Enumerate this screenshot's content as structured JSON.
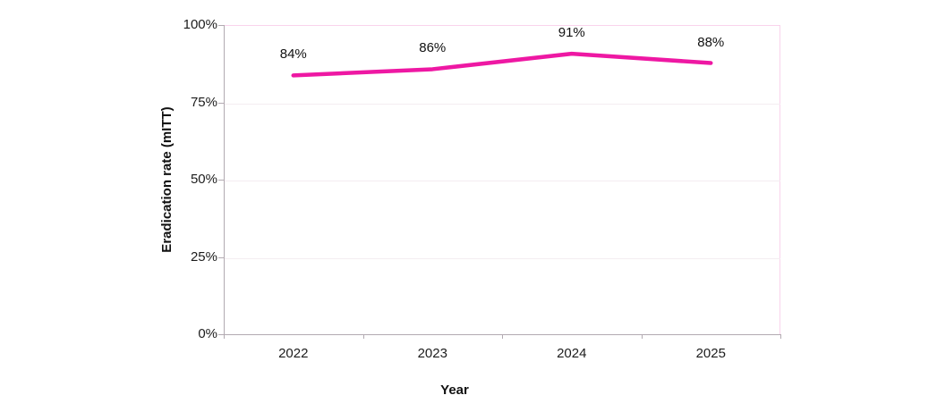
{
  "chart_data": {
    "type": "line",
    "title": "",
    "categories": [
      "2022",
      "2023",
      "2024",
      "2025"
    ],
    "series": [
      {
        "name": "Eradication rate (mITT)",
        "values": [
          84,
          86,
          91,
          88
        ]
      }
    ],
    "data_labels": [
      "84%",
      "86%",
      "91%",
      "88%"
    ],
    "xlabel": "Year",
    "ylabel": "Eradication rate (mITT)",
    "ylim": [
      0,
      100
    ],
    "yticks": [
      0,
      25,
      50,
      75,
      100
    ],
    "ytick_labels": [
      "0%",
      "25%",
      "50%",
      "75%",
      "100%"
    ],
    "grid": true,
    "legend": "none",
    "colors": {
      "line": "#ee18a3",
      "gridline": "#f4edf1",
      "plot_border": "#f9d3ec",
      "axis": "#b2aab1",
      "tick_text": "#1c1c1c",
      "label_text": "#111111",
      "background": "#ffffff"
    }
  }
}
